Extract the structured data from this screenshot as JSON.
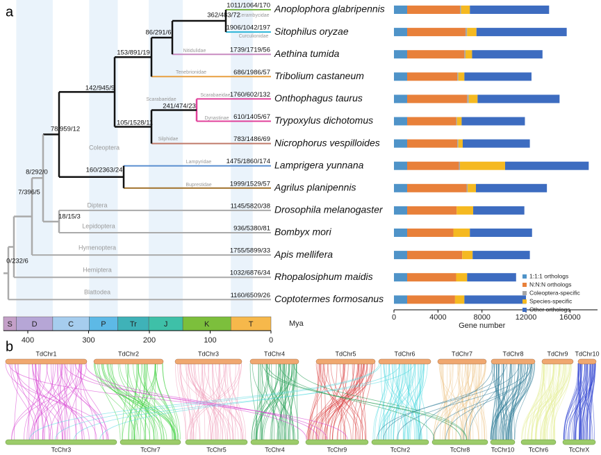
{
  "panel_labels": [
    "a",
    "b"
  ],
  "tree": {
    "tip_counts": [
      "1011/1064/170",
      "1906/1042/197",
      "1739/1719/56",
      "686/1986/57",
      "1760/602/132",
      "610/1405/67",
      "783/1486/69",
      "1475/1860/174",
      "1999/1529/57",
      "1145/5820/38",
      "936/5380/81",
      "1755/5899/33",
      "1032/6876/34",
      "1160/6509/26"
    ],
    "node_labels": [
      "362/483/72",
      "86/291/6",
      "153/891/19",
      "142/945/9",
      "241/474/23",
      "105/1528/11",
      "78/959/12",
      "160/2363/24",
      "8/292/0",
      "7/396/5",
      "18/15/3",
      "0/232/6"
    ],
    "clade_labels": [
      "Cerambycidae",
      "Curculionidae",
      "Nitidulidae",
      "Tenebrionidae",
      "Scarabaeidae",
      "Scarabaeidae",
      "Dynastinae",
      "Silphidae",
      "Lampyridae",
      "Buprestidae",
      "Coleoptera",
      "Diptera",
      "Lepidoptera",
      "Hymenoptera",
      "Hemiptera",
      "Blattodea"
    ],
    "timescale": {
      "periods": [
        "S",
        "D",
        "C",
        "P",
        "Tr",
        "J",
        "K",
        "T"
      ],
      "ticks": [
        400,
        300,
        200,
        100,
        0
      ],
      "unit": "Mya"
    }
  },
  "chart_data": {
    "type": "bar",
    "orientation": "horizontal",
    "stacked": true,
    "categories": [
      "Anoplophora glabripennis",
      "Sitophilus oryzae",
      "Aethina tumida",
      "Tribolium castaneum",
      "Onthophagus taurus",
      "Trypoxylus dichotomus",
      "Nicrophorus vespilloides",
      "Lamprigera yunnana",
      "Agrilus planipennis",
      "Drosophila melanogaster",
      "Bombyx mori",
      "Apis mellifera",
      "Rhopalosiphum maidis",
      "Coptotermes formosanus"
    ],
    "series": [
      {
        "name": "1:1:1 orthologs",
        "color": "#4f93c8",
        "values": [
          1200,
          1200,
          1200,
          1200,
          1200,
          1200,
          1200,
          1200,
          1200,
          1200,
          1200,
          1200,
          1200,
          1200
        ]
      },
      {
        "name": "N:N:N orthologs",
        "color": "#e8803a",
        "values": [
          4800,
          5300,
          5200,
          4550,
          5450,
          4450,
          4550,
          4700,
          5400,
          4500,
          4200,
          5000,
          4450,
          4350
        ]
      },
      {
        "name": "Coleoptera-specific",
        "color": "#a6a6a6",
        "values": [
          100,
          150,
          100,
          100,
          150,
          80,
          100,
          100,
          100,
          0,
          0,
          0,
          0,
          0
        ]
      },
      {
        "name": "Species-specific",
        "color": "#f5b921",
        "values": [
          800,
          850,
          600,
          550,
          800,
          420,
          400,
          4100,
          750,
          1500,
          1500,
          950,
          1000,
          850
        ]
      },
      {
        "name": "Other orthologs",
        "color": "#3d6cc0",
        "values": [
          7200,
          8200,
          6400,
          6100,
          7450,
          5750,
          6100,
          7600,
          6450,
          4650,
          5650,
          5200,
          4450,
          5600
        ]
      }
    ],
    "xlim": [
      0,
      18500
    ],
    "xticks": [
      0,
      4000,
      8000,
      12000,
      16000
    ],
    "xlabel": "Gene number",
    "legend": "lower right"
  },
  "synteny": {
    "top": [
      "TdChr1",
      "TdChr2",
      "TdChr3",
      "TdChr4",
      "TdChr5",
      "TdChr6",
      "TdChr7",
      "TdChr8",
      "TdChr9",
      "TdChr10"
    ],
    "bottom": [
      "TcChr3",
      "TcChr7",
      "TcChr5",
      "TcChr4",
      "TcChr9",
      "TcChr2",
      "TcChr8",
      "TcChr10",
      "TcChr6",
      "TcChrX"
    ]
  }
}
